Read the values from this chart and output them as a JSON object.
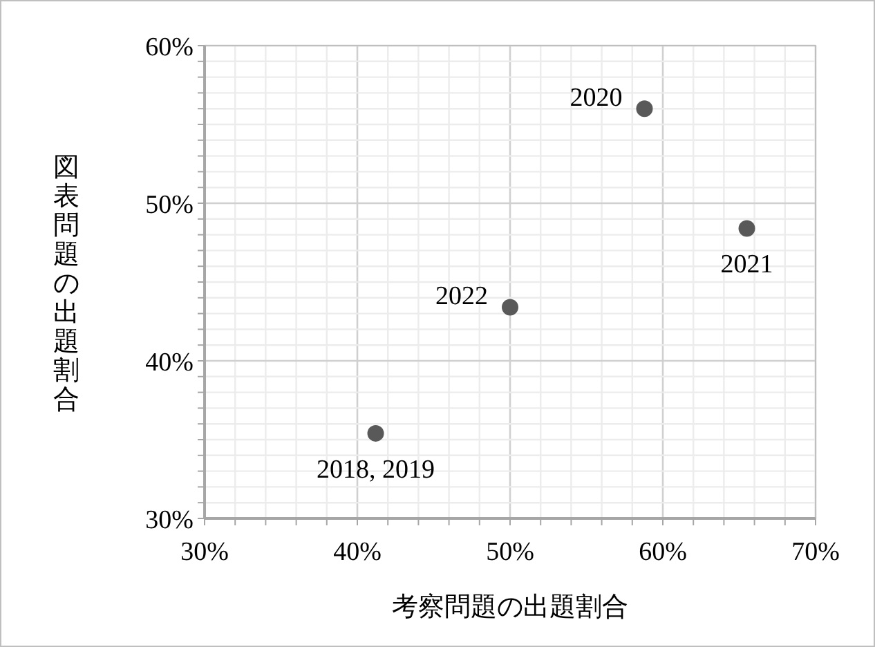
{
  "chart_data": {
    "type": "scatter",
    "xlabel": "考察問題の出題割合",
    "ylabel": "図表問題の出題割合",
    "x": [
      41.2,
      58.8,
      65.5,
      50
    ],
    "series": [
      {
        "color": "#595959",
        "values": [
          35.4,
          56.0,
          48.4,
          43.4
        ]
      }
    ],
    "marker": "circle",
    "xlim": [
      30,
      70
    ],
    "ylim": [
      30,
      60
    ],
    "xticks": [
      {
        "value": 30,
        "label": "30%"
      },
      {
        "value": 32,
        "label": null
      },
      {
        "value": 34,
        "label": null
      },
      {
        "value": 36,
        "label": null
      },
      {
        "value": 38,
        "label": null
      },
      {
        "value": 40,
        "label": "40%"
      },
      {
        "value": 42,
        "label": null
      },
      {
        "value": 44,
        "label": null
      },
      {
        "value": 46,
        "label": null
      },
      {
        "value": 48,
        "label": null
      },
      {
        "value": 50,
        "label": "50%"
      },
      {
        "value": 52,
        "label": null
      },
      {
        "value": 54,
        "label": null
      },
      {
        "value": 56,
        "label": null
      },
      {
        "value": 58,
        "label": null
      },
      {
        "value": 60,
        "label": "60%"
      },
      {
        "value": 62,
        "label": null
      },
      {
        "value": 64,
        "label": null
      },
      {
        "value": 66,
        "label": null
      },
      {
        "value": 68,
        "label": null
      },
      {
        "value": 70,
        "label": "70%"
      }
    ],
    "yticks": [
      {
        "value": 30,
        "label": "30%"
      },
      {
        "value": 31,
        "label": null
      },
      {
        "value": 32,
        "label": null
      },
      {
        "value": 33,
        "label": null
      },
      {
        "value": 34,
        "label": null
      },
      {
        "value": 35,
        "label": null
      },
      {
        "value": 36,
        "label": null
      },
      {
        "value": 37,
        "label": null
      },
      {
        "value": 38,
        "label": null
      },
      {
        "value": 39,
        "label": null
      },
      {
        "value": 40,
        "label": "40%"
      },
      {
        "value": 41,
        "label": null
      },
      {
        "value": 42,
        "label": null
      },
      {
        "value": 43,
        "label": null
      },
      {
        "value": 44,
        "label": null
      },
      {
        "value": 45,
        "label": null
      },
      {
        "value": 46,
        "label": null
      },
      {
        "value": 47,
        "label": null
      },
      {
        "value": 48,
        "label": null
      },
      {
        "value": 49,
        "label": null
      },
      {
        "value": 50,
        "label": "50%"
      },
      {
        "value": 51,
        "label": null
      },
      {
        "value": 52,
        "label": null
      },
      {
        "value": 53,
        "label": null
      },
      {
        "value": 54,
        "label": null
      },
      {
        "value": 55,
        "label": null
      },
      {
        "value": 56,
        "label": null
      },
      {
        "value": 57,
        "label": null
      },
      {
        "value": 58,
        "label": null
      },
      {
        "value": 59,
        "label": null
      },
      {
        "value": 60,
        "label": "60%"
      }
    ],
    "grid": true,
    "annotations": [
      {
        "text": "2018, 2019",
        "x": 41.2,
        "y": 35.4
      },
      {
        "text": "2020",
        "x": 58.8,
        "y": 56.0
      },
      {
        "text": "2021",
        "x": 65.5,
        "y": 48.4
      },
      {
        "text": "2022",
        "x": 50,
        "y": 43.4
      }
    ]
  }
}
